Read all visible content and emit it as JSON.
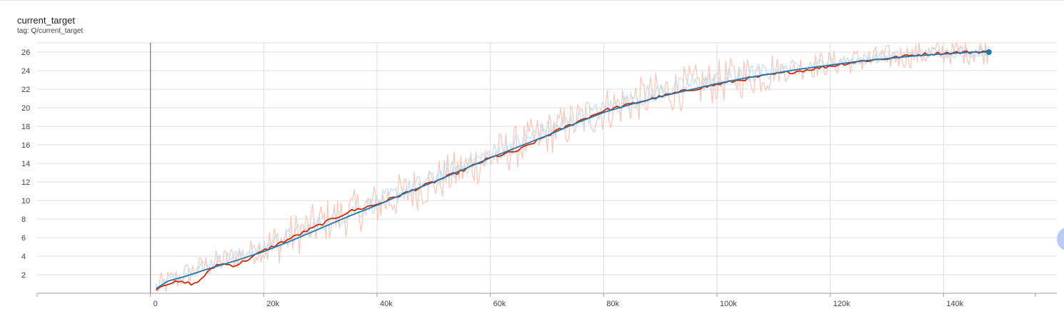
{
  "card": {
    "title": "current_target",
    "tag": "tag: Q/current_target"
  },
  "colors": {
    "run1_raw": "#f6c6b8",
    "run1_smoothed": "#cc2a04",
    "run2_raw": "#c5ddef",
    "run2_smoothed": "#1f78b4",
    "grid": "#dddddd",
    "axis": "#9e9e9e",
    "text": "#424242"
  },
  "chart_data": {
    "type": "line",
    "title": "current_target",
    "xlabel": "",
    "ylabel": "",
    "xlim": [
      -20000,
      160000
    ],
    "ylim": [
      0,
      27
    ],
    "x_ticks": [
      0,
      20000,
      40000,
      60000,
      80000,
      100000,
      120000,
      140000
    ],
    "x_tick_labels": [
      "0",
      "20k",
      "40k",
      "60k",
      "80k",
      "100k",
      "120k",
      "140k"
    ],
    "y_ticks": [
      2,
      4,
      6,
      8,
      10,
      12,
      14,
      16,
      18,
      20,
      22,
      24,
      26
    ],
    "y_tick_labels": [
      "2",
      "4",
      "6",
      "8",
      "10",
      "12",
      "14",
      "16",
      "18",
      "20",
      "22",
      "24",
      "26"
    ],
    "grid": true,
    "legend": "none",
    "series": [
      {
        "style": "raw",
        "color": "#f6c6b8",
        "x": [
          1000,
          10000,
          20000,
          30000,
          40000,
          50000,
          60000,
          70000,
          80000,
          90000,
          100000,
          110000,
          120000,
          130000,
          140000,
          148000
        ],
        "values": [
          0.6,
          3.0,
          4.8,
          7.6,
          9.6,
          12.0,
          14.6,
          17.2,
          19.8,
          21.6,
          22.8,
          24.0,
          24.8,
          25.4,
          26.0,
          26.1
        ]
      },
      {
        "style": "smoothed",
        "color": "#cc2a04",
        "x": [
          1000,
          3000,
          5000,
          8000,
          10000,
          12000,
          15000,
          17000,
          20000,
          25000,
          30000,
          35000,
          40000,
          45000,
          50000,
          55000,
          60000,
          65000,
          70000,
          75000,
          80000,
          85000,
          90000,
          95000,
          100000,
          105000,
          110000,
          115000,
          120000,
          125000,
          130000,
          135000,
          140000,
          145000,
          148000
        ],
        "values": [
          0.5,
          1.1,
          1.2,
          1.0,
          2.2,
          3.2,
          3.0,
          3.6,
          4.6,
          6.0,
          7.4,
          8.8,
          9.6,
          10.8,
          12.0,
          13.2,
          14.6,
          15.4,
          17.0,
          18.4,
          19.7,
          20.4,
          21.2,
          21.9,
          22.5,
          23.1,
          23.6,
          24.0,
          24.5,
          25.0,
          25.3,
          25.7,
          25.9,
          26.0,
          26.1
        ]
      },
      {
        "style": "raw",
        "color": "#c5ddef",
        "x": [
          1000,
          10000,
          20000,
          30000,
          40000,
          50000,
          60000,
          70000,
          80000,
          90000,
          100000,
          110000,
          120000,
          130000,
          140000,
          148000
        ],
        "values": [
          0.8,
          3.2,
          5.0,
          7.4,
          9.8,
          12.4,
          15.0,
          17.6,
          19.8,
          21.8,
          23.0,
          24.0,
          24.9,
          25.5,
          26.0,
          26.1
        ]
      },
      {
        "style": "smoothed",
        "color": "#1f78b4",
        "x": [
          1000,
          3000,
          6000,
          10000,
          15000,
          20000,
          25000,
          30000,
          35000,
          40000,
          45000,
          50000,
          55000,
          60000,
          65000,
          70000,
          75000,
          80000,
          85000,
          90000,
          95000,
          100000,
          105000,
          110000,
          115000,
          120000,
          125000,
          130000,
          135000,
          140000,
          145000,
          148000
        ],
        "values": [
          0.5,
          1.3,
          1.8,
          2.6,
          3.5,
          4.5,
          5.7,
          7.0,
          8.3,
          9.5,
          10.8,
          12.0,
          13.3,
          14.6,
          15.8,
          17.0,
          18.3,
          19.5,
          20.4,
          21.2,
          21.9,
          22.6,
          23.2,
          23.7,
          24.2,
          24.6,
          25.0,
          25.3,
          25.6,
          25.8,
          26.0,
          26.0
        ]
      }
    ]
  }
}
